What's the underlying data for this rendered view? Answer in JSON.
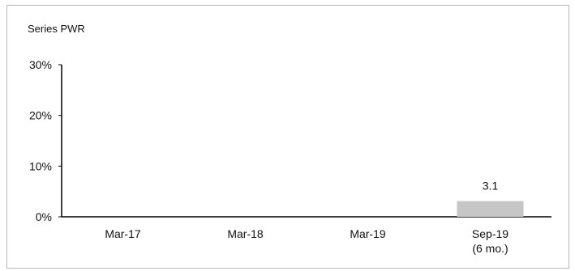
{
  "chart_data": {
    "type": "bar",
    "title": "Series PWR",
    "categories": [
      {
        "line1": "Mar-17",
        "line2": ""
      },
      {
        "line1": "Mar-18",
        "line2": ""
      },
      {
        "line1": "Mar-19",
        "line2": ""
      },
      {
        "line1": "Sep-19",
        "line2": "(6 mo.)"
      }
    ],
    "values": [
      null,
      null,
      null,
      3.1
    ],
    "data_labels": [
      "",
      "",
      "",
      "3.1"
    ],
    "ylim": [
      0,
      30
    ],
    "yticks": [
      {
        "value": 0,
        "label": "0%"
      },
      {
        "value": 10,
        "label": "10%"
      },
      {
        "value": 20,
        "label": "20%"
      },
      {
        "value": 30,
        "label": "30%"
      }
    ],
    "grid": false,
    "bar_color": "#c6c6c6",
    "axis_color": "#000000"
  }
}
